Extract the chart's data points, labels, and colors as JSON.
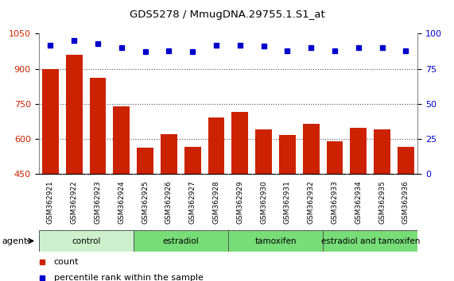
{
  "title": "GDS5278 / MmugDNA.29755.1.S1_at",
  "samples": [
    "GSM362921",
    "GSM362922",
    "GSM362923",
    "GSM362924",
    "GSM362925",
    "GSM362926",
    "GSM362927",
    "GSM362928",
    "GSM362929",
    "GSM362930",
    "GSM362931",
    "GSM362932",
    "GSM362933",
    "GSM362934",
    "GSM362935",
    "GSM362936"
  ],
  "counts": [
    900,
    960,
    862,
    740,
    565,
    622,
    568,
    693,
    715,
    640,
    618,
    665,
    590,
    648,
    640,
    568
  ],
  "percentiles": [
    92,
    95,
    93,
    90,
    87,
    88,
    87,
    92,
    92,
    91,
    88,
    90,
    88,
    90,
    90,
    88
  ],
  "ylim_left": [
    450,
    1050
  ],
  "ylim_right": [
    0,
    100
  ],
  "yticks_left": [
    450,
    600,
    750,
    900,
    1050
  ],
  "yticks_right": [
    0,
    25,
    50,
    75,
    100
  ],
  "groups": [
    {
      "label": "control",
      "start": 0,
      "end": 4,
      "color": "#ccf0cc"
    },
    {
      "label": "estradiol",
      "start": 4,
      "end": 8,
      "color": "#77dd77"
    },
    {
      "label": "tamoxifen",
      "start": 8,
      "end": 12,
      "color": "#77dd77"
    },
    {
      "label": "estradiol and tamoxifen",
      "start": 12,
      "end": 16,
      "color": "#77dd77"
    }
  ],
  "bar_color": "#cc2200",
  "dot_color": "#0000cc",
  "sample_bg": "#c8c8c8",
  "plot_bg": "#ffffff",
  "agent_label": "agent",
  "legend_count": "count",
  "legend_pct": "percentile rank within the sample",
  "grid_color": "#555555",
  "grid_lines": [
    600,
    750,
    900
  ]
}
